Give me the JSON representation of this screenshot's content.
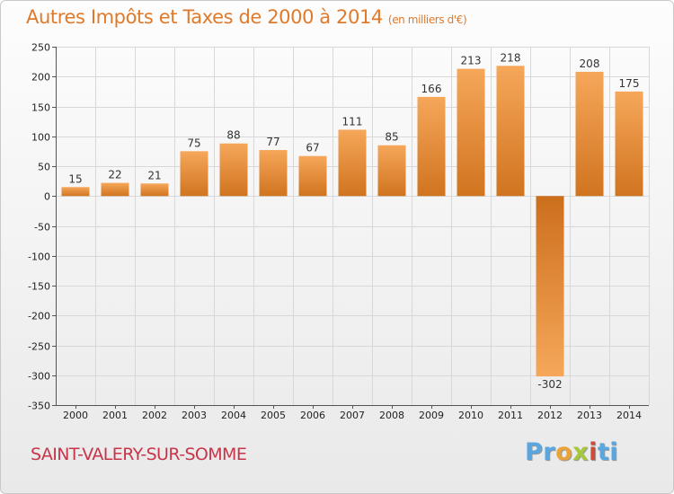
{
  "title": "Autres Impôts et Taxes de 2000 à 2014",
  "subtitle": "(en milliers d'€)",
  "commune": "SAINT-VALERY-SUR-SOMME",
  "logo": {
    "letters": [
      "Pr",
      "o",
      "x",
      "i",
      "ti"
    ],
    "text": "Proxiti"
  },
  "colors": {
    "title": "#e07a2a",
    "commune": "#c8354a",
    "bar_light": "#f5a455",
    "bar_dark": "#d07420",
    "grid": "#d8d8d8"
  },
  "chart_data": {
    "type": "bar",
    "title": "Autres Impôts et Taxes de 2000 à 2014",
    "subtitle": "(en milliers d'€)",
    "categories": [
      "2000",
      "2001",
      "2002",
      "2003",
      "2004",
      "2005",
      "2006",
      "2007",
      "2008",
      "2009",
      "2010",
      "2011",
      "2012",
      "2013",
      "2014"
    ],
    "values": [
      15,
      22,
      21,
      75,
      88,
      77,
      67,
      111,
      85,
      166,
      213,
      218,
      -302,
      208,
      175
    ],
    "data_labels": [
      "15",
      "22",
      "21",
      "75",
      "88",
      "77",
      "67",
      "111",
      "85",
      "166",
      "213",
      "218",
      "-302",
      "208",
      "175"
    ],
    "ylim": [
      -350,
      250
    ],
    "yticks": [
      250,
      200,
      150,
      100,
      50,
      0,
      -50,
      -100,
      -150,
      -200,
      -250,
      -300,
      -350
    ],
    "ytick_labels": [
      "250",
      "200",
      "150",
      "100",
      "50",
      "0",
      "-50",
      "-100",
      "-150",
      "-200",
      "-250",
      "-300",
      "-350"
    ],
    "grid": true,
    "xlabel": "",
    "ylabel": ""
  }
}
